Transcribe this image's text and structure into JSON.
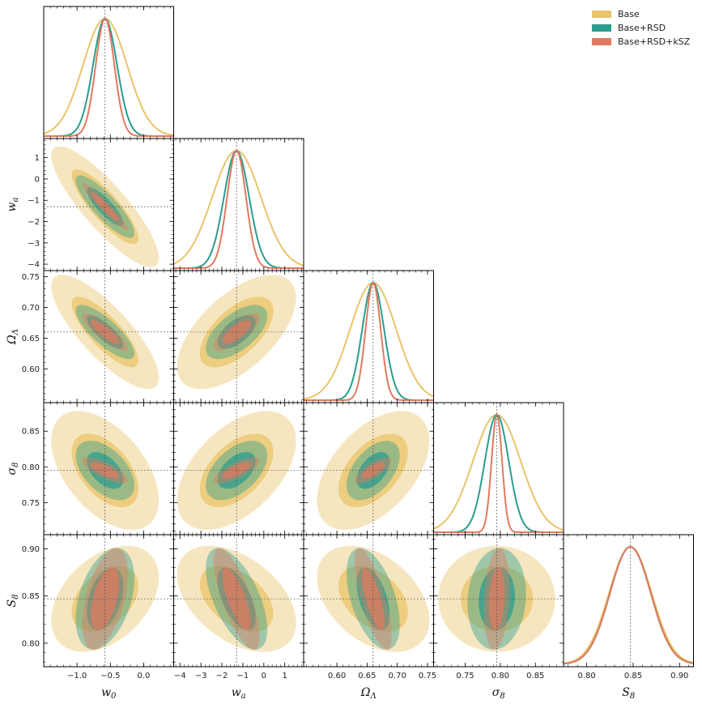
{
  "chart_data": {
    "type": "corner",
    "params": [
      {
        "key": "w0",
        "label_main": "w",
        "label_sub": "0",
        "fiducial": -0.58,
        "range": [
          -1.5,
          0.45
        ],
        "ticks": [
          -1.0,
          -0.5,
          0.0
        ],
        "tick_labels": [
          "−1.0",
          "−0.5",
          "0.0"
        ]
      },
      {
        "key": "wa",
        "label_main": "w",
        "label_sub": "a",
        "fiducial": -1.3,
        "range": [
          -4.3,
          1.9
        ],
        "ticks": [
          -4,
          -3,
          -2,
          -1,
          0,
          1
        ],
        "tick_labels": [
          "−4",
          "−3",
          "−2",
          "−1",
          "0",
          "1"
        ]
      },
      {
        "key": "OmegaL",
        "label_main": "Ω",
        "label_sub": "Λ",
        "fiducial": 0.66,
        "range": [
          0.545,
          0.76
        ],
        "ticks": [
          0.6,
          0.65,
          0.7,
          0.75
        ],
        "tick_labels": [
          "0.60",
          "0.65",
          "0.70",
          "0.75"
        ]
      },
      {
        "key": "sigma8",
        "label_main": "σ",
        "label_sub": "8",
        "fiducial": 0.795,
        "range": [
          0.705,
          0.89
        ],
        "ticks": [
          0.75,
          0.8,
          0.85
        ],
        "tick_labels": [
          "0.75",
          "0.80",
          "0.85"
        ]
      },
      {
        "key": "S8",
        "label_main": "S",
        "label_sub": "8",
        "fiducial": 0.847,
        "range": [
          0.775,
          0.915
        ],
        "ticks": [
          0.8,
          0.85,
          0.9
        ],
        "tick_labels": [
          "0.80",
          "0.85",
          "0.90"
        ]
      }
    ],
    "series": [
      {
        "name": "Base",
        "color": "#e9c46a",
        "sigma": [
          0.33,
          1.16,
          0.038,
          0.034,
          0.023
        ],
        "correlation": [
          [
            1,
            -0.85,
            -0.8,
            -0.5,
            0.4
          ],
          [
            -0.85,
            1,
            0.6,
            0.5,
            -0.45
          ],
          [
            -0.8,
            0.6,
            1,
            0.5,
            -0.4
          ],
          [
            -0.5,
            0.5,
            0.5,
            1,
            0.0
          ],
          [
            0.4,
            -0.45,
            -0.4,
            0.0,
            1
          ]
        ]
      },
      {
        "name": "Base+RSD",
        "color": "#2a9d8f",
        "sigma": [
          0.18,
          0.6,
          0.018,
          0.017,
          0.022
        ],
        "correlation": [
          [
            1,
            -0.85,
            -0.8,
            -0.5,
            0.4
          ],
          [
            -0.85,
            1,
            0.6,
            0.5,
            -0.6
          ],
          [
            -0.8,
            0.6,
            1,
            0.5,
            -0.5
          ],
          [
            -0.5,
            0.5,
            0.5,
            1,
            0.1
          ],
          [
            0.4,
            -0.6,
            -0.5,
            0.1,
            1
          ]
        ]
      },
      {
        "name": "Base+RSD+kSZ",
        "color": "#e07a5f",
        "sigma": [
          0.14,
          0.45,
          0.0125,
          0.0075,
          0.022
        ],
        "correlation": [
          [
            1,
            -0.95,
            -0.85,
            -0.75,
            0.5
          ],
          [
            -0.95,
            1,
            0.75,
            0.75,
            -0.75
          ],
          [
            -0.85,
            0.75,
            1,
            0.75,
            -0.75
          ],
          [
            -0.75,
            0.75,
            0.75,
            1,
            0.2
          ],
          [
            0.5,
            -0.75,
            -0.75,
            0.2,
            1
          ]
        ]
      }
    ],
    "contour_levels": [
      "68%",
      "95%"
    ],
    "legend": [
      "Base",
      "Base+RSD",
      "Base+RSD+kSZ"
    ],
    "legend_position": "top-right",
    "grid": false
  }
}
